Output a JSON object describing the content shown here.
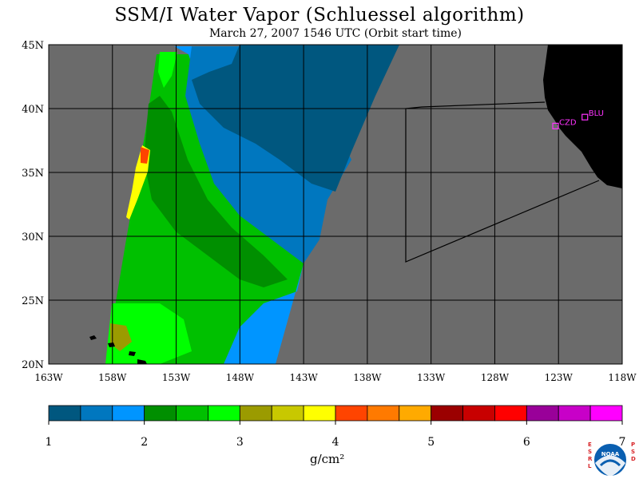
{
  "title": "SSM/I Water Vapor (Schluessel algorithm)",
  "subtitle": "March 27, 2007  1546 UTC  (Orbit start time)",
  "map": {
    "lat_range": [
      20,
      45
    ],
    "lon_range": [
      -163,
      -118
    ],
    "lat_ticks": [
      "20N",
      "25N",
      "30N",
      "35N",
      "40N",
      "45N"
    ],
    "lon_ticks": [
      "163W",
      "158W",
      "153W",
      "148W",
      "143W",
      "138W",
      "133W",
      "128W",
      "123W",
      "118W"
    ],
    "grid": true,
    "colors": {
      "no_data": "#6b6b6b",
      "land": "#000000",
      "grid": "#000000"
    },
    "stations": [
      {
        "id": "CZD",
        "lat": 38.6,
        "lon": -123.2
      },
      {
        "id": "BLU",
        "lat": 39.3,
        "lon": -120.9
      }
    ]
  },
  "colorbar": {
    "labels": [
      "1",
      "2",
      "3",
      "4",
      "5",
      "6",
      "7"
    ],
    "min": 1,
    "max": 7,
    "units": "g/cm²",
    "colors": [
      "#00577f",
      "#0077bf",
      "#0095ff",
      "#008f00",
      "#00c000",
      "#00ff00",
      "#9b9b00",
      "#c8c800",
      "#ffff00",
      "#ff4400",
      "#ff7a00",
      "#ffaa00",
      "#9b0000",
      "#c80000",
      "#ff0000",
      "#990099",
      "#c800c8",
      "#ff00ff"
    ]
  },
  "logo": {
    "text": "NOAA",
    "left_letters": "ESRL",
    "right_letters": "PSD"
  }
}
